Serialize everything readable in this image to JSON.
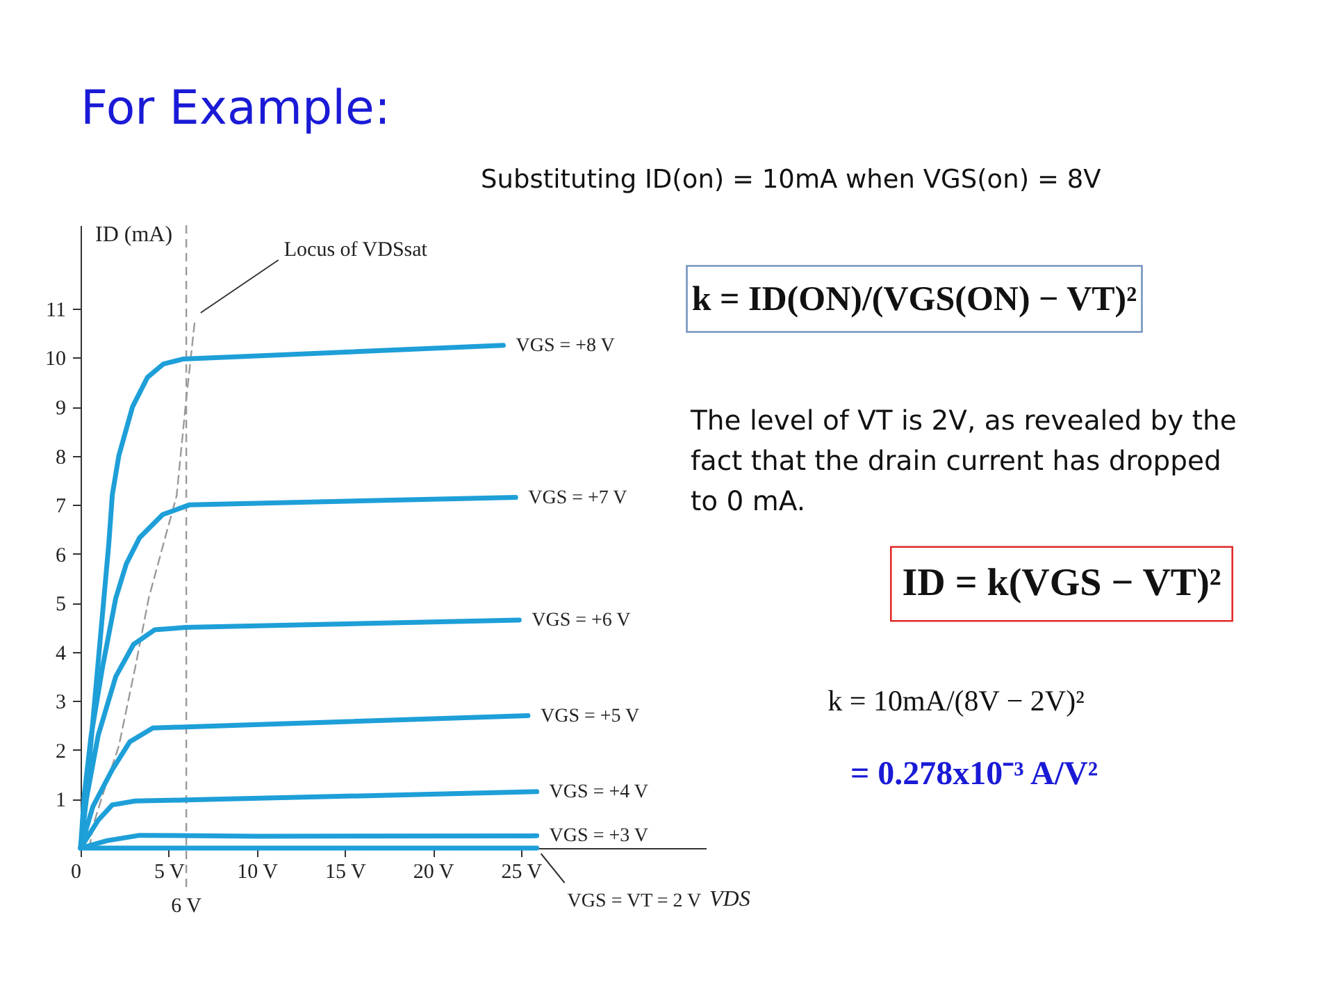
{
  "chart_data": {
    "type": "line",
    "title": "For Example:",
    "xlabel": "VDS",
    "ylabel": "ID (mA)",
    "xlim": [
      0,
      35.5
    ],
    "ylim": [
      0,
      12.7
    ],
    "xticks": [
      {
        "value": 0,
        "label": "0"
      },
      {
        "value": 5,
        "label": "5 V"
      },
      {
        "value": 10,
        "label": "10 V"
      },
      {
        "value": 15,
        "label": "15 V"
      },
      {
        "value": 20,
        "label": "20 V"
      },
      {
        "value": 25,
        "label": "25 V"
      }
    ],
    "yticks": [
      1,
      2,
      3,
      4,
      5,
      6,
      7,
      8,
      9,
      10,
      11
    ],
    "series": [
      {
        "name": "Locus of VDSsat",
        "line_style": "dashed",
        "color": "#9a9a9a",
        "x": [
          0.5,
          0.72,
          1.38,
          2.17,
          3.1,
          3.87,
          4.8,
          5.45,
          5.97,
          6.5
        ],
        "values": [
          0,
          0.47,
          1.23,
          2.08,
          3.68,
          5.1,
          6.33,
          7.18,
          9.06,
          10.8
        ]
      },
      {
        "name": "VGS = +8 V",
        "color": "#1e9fd8",
        "x": [
          0,
          0.3,
          0.8,
          1.3,
          1.6,
          1.8,
          2.17,
          2.95,
          3.8,
          4.7,
          5.8,
          24
        ],
        "values": [
          0,
          1,
          3,
          5,
          6.2,
          7.2,
          8,
          9,
          9.6,
          9.87,
          9.97,
          10.25
        ]
      },
      {
        "name": "VGS = +7 V",
        "color": "#1e9fd8",
        "x": [
          0,
          0.2,
          0.6,
          1.25,
          2.0,
          2.6,
          3.35,
          4.66,
          6.2,
          24.7
        ],
        "values": [
          0,
          1.05,
          2.3,
          3.7,
          5.1,
          5.8,
          6.33,
          6.8,
          7.0,
          7.15
        ]
      },
      {
        "name": "VGS = +6 V",
        "color": "#1e9fd8",
        "x": [
          0,
          0.33,
          1.0,
          2.0,
          3.0,
          4.2,
          6.0,
          24.9
        ],
        "values": [
          0,
          1.0,
          2.3,
          3.5,
          4.15,
          4.45,
          4.5,
          4.65
        ]
      },
      {
        "name": "VGS = +5 V",
        "color": "#1e9fd8",
        "x": [
          0,
          0.7,
          1.8,
          2.8,
          4.1,
          6,
          25.4
        ],
        "values": [
          0,
          0.85,
          1.6,
          2.17,
          2.45,
          2.47,
          2.7
        ]
      },
      {
        "name": "VGS = +4 V",
        "color": "#1e9fd8",
        "x": [
          0,
          1.0,
          1.8,
          3.1,
          6,
          25.9
        ],
        "values": [
          0,
          0.57,
          0.88,
          0.96,
          0.98,
          1.15
        ]
      },
      {
        "name": "VGS = +3 V",
        "color": "#1e9fd8",
        "x": [
          0,
          1.5,
          3.35,
          10,
          25.9
        ],
        "values": [
          0,
          0.15,
          0.26,
          0.24,
          0.25
        ]
      },
      {
        "name": "VGS = VT = 2 V",
        "color": "#1e9fd8",
        "x": [
          0,
          25.9
        ],
        "values": [
          0,
          0
        ]
      }
    ],
    "ref_lines": [
      {
        "axis": "x",
        "value": 6,
        "label": "6 V",
        "line_style": "dashed",
        "color": "#9a9a9a"
      }
    ],
    "annotations": [
      "Substituting ID(on) = 10mA when VGS(on) = 8V",
      "k = ID(ON)/(VGS(ON) − VT)²",
      "The level of VT is 2V, as revealed by the fact that the drain current has dropped to 0 mA.",
      "ID = k(VGS − VT)²",
      "k = 10mA/(8V − 2V)²",
      "= 0.278x10⁻³ A/V²"
    ]
  }
}
